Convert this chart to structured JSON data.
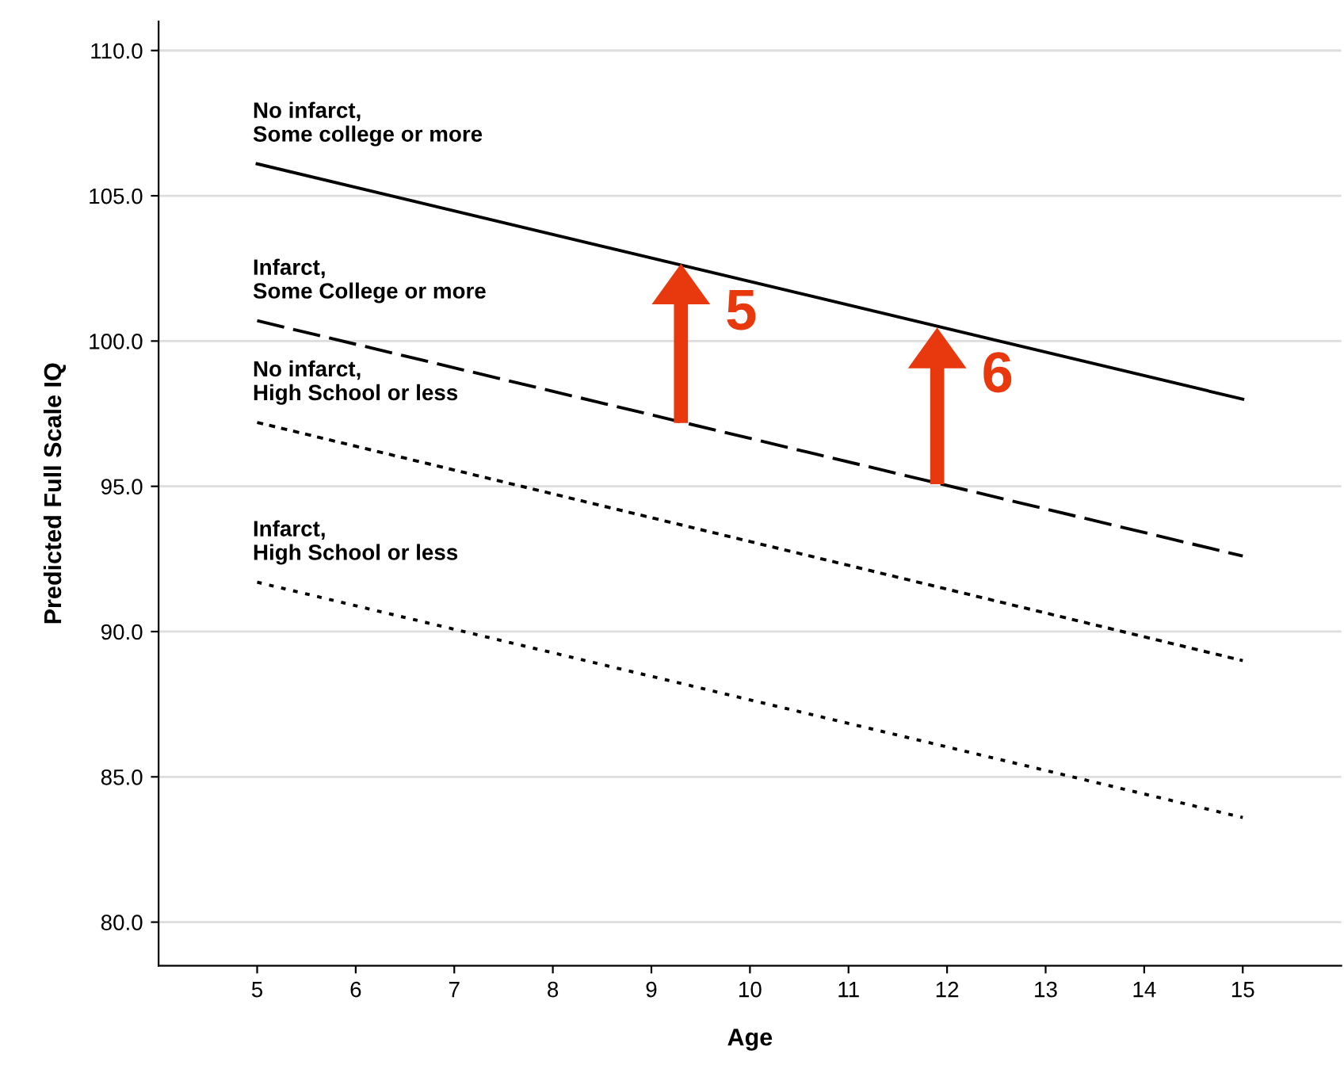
{
  "chart_data": {
    "type": "line",
    "xlabel": "Age",
    "ylabel": "Predicted Full Scale IQ",
    "x": [
      5,
      15
    ],
    "series": [
      {
        "name": "No infarct,\nSome college or more",
        "color": "#000000",
        "line_style": "solid",
        "values": [
          106.1,
          98.0
        ]
      },
      {
        "name": "Infarct,\nSome College or more",
        "color": "#000000",
        "line_style": "dashed",
        "values": [
          100.7,
          92.6
        ]
      },
      {
        "name": "No infarct,\nHigh School or less",
        "color": "#000000",
        "line_style": "dotted",
        "values": [
          97.2,
          89.0
        ]
      },
      {
        "name": "Infarct,\nHigh School or less",
        "color": "#000000",
        "line_style": "dotted",
        "values": [
          91.7,
          83.6
        ]
      }
    ],
    "annotations": [
      {
        "text": "5",
        "x": 9.3,
        "y": 102.6
      },
      {
        "text": "6",
        "x": 11.9,
        "y": 100.4
      }
    ],
    "xlim": [
      4,
      16
    ],
    "xticks": [
      5,
      6,
      7,
      8,
      9,
      10,
      11,
      12,
      13,
      14,
      15
    ],
    "ylim": [
      78.5,
      111
    ],
    "yticks": [
      {
        "value": 80,
        "label": "80.0"
      },
      {
        "value": 85,
        "label": "85.0"
      },
      {
        "value": 90,
        "label": "90.0"
      },
      {
        "value": 95,
        "label": "95.0"
      },
      {
        "value": 100,
        "label": "100.0"
      },
      {
        "value": 105,
        "label": "105.0"
      },
      {
        "value": 110,
        "label": "110.0"
      }
    ],
    "grid": "y",
    "legend": false,
    "marker": "none"
  }
}
